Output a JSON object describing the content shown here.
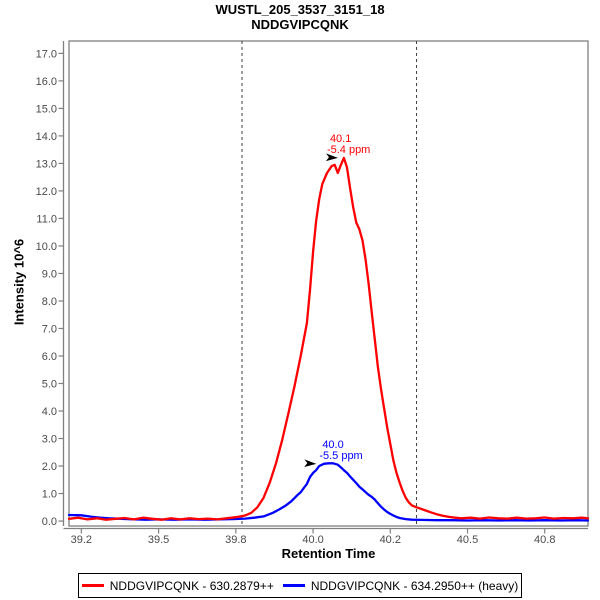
{
  "title": {
    "line1": "WUSTL_205_3537_3151_18",
    "line2": "NDDGVIPCQNK"
  },
  "chart_data": {
    "type": "line",
    "title": "WUSTL_205_3537_3151_18",
    "subtitle": "NDDGVIPCQNK",
    "xlabel": "Retention Time",
    "ylabel": "Intensity 10^6",
    "xlim": [
      39.21,
      40.89
    ],
    "ylim": [
      -0.18,
      17.45
    ],
    "grid": false,
    "legend_position": "bottom",
    "x_ticks": [
      {
        "t": 39.25,
        "label": "39.2"
      },
      {
        "t": 39.5,
        "label": "39.5"
      },
      {
        "t": 39.75,
        "label": "39.8"
      },
      {
        "t": 40.0,
        "label": "40.0"
      },
      {
        "t": 40.25,
        "label": "40.2"
      },
      {
        "t": 40.5,
        "label": "40.5"
      },
      {
        "t": 40.75,
        "label": "40.8"
      }
    ],
    "y_ticks": [
      {
        "v": 0,
        "label": "0.0"
      },
      {
        "v": 1,
        "label": "1.0"
      },
      {
        "v": 2,
        "label": "2.0"
      },
      {
        "v": 3,
        "label": "3.0"
      },
      {
        "v": 4,
        "label": "4.0"
      },
      {
        "v": 5,
        "label": "5.0"
      },
      {
        "v": 6,
        "label": "6.0"
      },
      {
        "v": 7,
        "label": "7.0"
      },
      {
        "v": 8,
        "label": "8.0"
      },
      {
        "v": 9,
        "label": "9.0"
      },
      {
        "v": 10,
        "label": "10.0"
      },
      {
        "v": 11,
        "label": "11.0"
      },
      {
        "v": 12,
        "label": "12.0"
      },
      {
        "v": 13,
        "label": "13.0"
      },
      {
        "v": 14,
        "label": "14.0"
      },
      {
        "v": 15,
        "label": "15.0"
      },
      {
        "v": 16,
        "label": "16.0"
      },
      {
        "v": 17,
        "label": "17.0"
      }
    ],
    "peak_boundaries": {
      "times": [
        39.77,
        40.335
      ],
      "style": "dashed",
      "color": "#3f3f3f"
    },
    "series": [
      {
        "id": "light",
        "name": "NDDGVIPCQNK - 630.2879++",
        "color": "#ff0000",
        "annotation": {
          "rt_label": "40.1",
          "ppm_label": "-5.4 ppm",
          "at": [
            40.1,
            13.2
          ],
          "label_dx": -14,
          "arrow_color": "#000000"
        },
        "points": [
          [
            39.21,
            0.08
          ],
          [
            39.24,
            0.12
          ],
          [
            39.27,
            0.06
          ],
          [
            39.3,
            0.1
          ],
          [
            39.33,
            0.05
          ],
          [
            39.36,
            0.08
          ],
          [
            39.39,
            0.11
          ],
          [
            39.42,
            0.06
          ],
          [
            39.45,
            0.12
          ],
          [
            39.48,
            0.08
          ],
          [
            39.51,
            0.05
          ],
          [
            39.54,
            0.1
          ],
          [
            39.57,
            0.06
          ],
          [
            39.6,
            0.1
          ],
          [
            39.63,
            0.07
          ],
          [
            39.66,
            0.09
          ],
          [
            39.69,
            0.06
          ],
          [
            39.72,
            0.1
          ],
          [
            39.75,
            0.14
          ],
          [
            39.78,
            0.2
          ],
          [
            39.8,
            0.3
          ],
          [
            39.82,
            0.5
          ],
          [
            39.84,
            0.85
          ],
          [
            39.86,
            1.4
          ],
          [
            39.88,
            2.1
          ],
          [
            39.9,
            2.95
          ],
          [
            39.92,
            3.9
          ],
          [
            39.94,
            4.9
          ],
          [
            39.96,
            6.0
          ],
          [
            39.98,
            7.2
          ],
          [
            39.99,
            8.4
          ],
          [
            40.0,
            9.8
          ],
          [
            40.01,
            10.9
          ],
          [
            40.02,
            11.7
          ],
          [
            40.03,
            12.25
          ],
          [
            40.045,
            12.65
          ],
          [
            40.06,
            12.9
          ],
          [
            40.07,
            12.95
          ],
          [
            40.08,
            12.65
          ],
          [
            40.09,
            12.95
          ],
          [
            40.1,
            13.2
          ],
          [
            40.11,
            12.85
          ],
          [
            40.12,
            12.1
          ],
          [
            40.13,
            11.4
          ],
          [
            40.14,
            10.85
          ],
          [
            40.15,
            10.6
          ],
          [
            40.16,
            10.2
          ],
          [
            40.17,
            9.5
          ],
          [
            40.18,
            8.6
          ],
          [
            40.19,
            7.6
          ],
          [
            40.2,
            6.6
          ],
          [
            40.21,
            5.6
          ],
          [
            40.22,
            4.8
          ],
          [
            40.23,
            4.1
          ],
          [
            40.24,
            3.4
          ],
          [
            40.25,
            2.8
          ],
          [
            40.26,
            2.2
          ],
          [
            40.27,
            1.75
          ],
          [
            40.28,
            1.4
          ],
          [
            40.29,
            1.1
          ],
          [
            40.3,
            0.85
          ],
          [
            40.31,
            0.68
          ],
          [
            40.32,
            0.57
          ],
          [
            40.335,
            0.5
          ],
          [
            40.36,
            0.4
          ],
          [
            40.38,
            0.32
          ],
          [
            40.4,
            0.25
          ],
          [
            40.42,
            0.19
          ],
          [
            40.44,
            0.15
          ],
          [
            40.46,
            0.12
          ],
          [
            40.48,
            0.1
          ],
          [
            40.51,
            0.12
          ],
          [
            40.54,
            0.09
          ],
          [
            40.57,
            0.13
          ],
          [
            40.6,
            0.1
          ],
          [
            40.63,
            0.09
          ],
          [
            40.66,
            0.12
          ],
          [
            40.69,
            0.09
          ],
          [
            40.72,
            0.1
          ],
          [
            40.75,
            0.13
          ],
          [
            40.78,
            0.09
          ],
          [
            40.81,
            0.11
          ],
          [
            40.84,
            0.1
          ],
          [
            40.87,
            0.12
          ],
          [
            40.89,
            0.1
          ]
        ]
      },
      {
        "id": "heavy",
        "name": "NDDGVIPCQNK - 634.2950++ (heavy)",
        "color": "#0000ff",
        "annotation": {
          "rt_label": "40.0",
          "ppm_label": "-5.5 ppm",
          "at": [
            40.03,
            2.08
          ],
          "label_dx": 0,
          "arrow_color": "#000000"
        },
        "points": [
          [
            39.21,
            0.22
          ],
          [
            39.25,
            0.21
          ],
          [
            39.28,
            0.16
          ],
          [
            39.31,
            0.12
          ],
          [
            39.34,
            0.1
          ],
          [
            39.38,
            0.08
          ],
          [
            39.42,
            0.06
          ],
          [
            39.46,
            0.05
          ],
          [
            39.5,
            0.06
          ],
          [
            39.55,
            0.05
          ],
          [
            39.6,
            0.06
          ],
          [
            39.65,
            0.05
          ],
          [
            39.7,
            0.06
          ],
          [
            39.74,
            0.07
          ],
          [
            39.78,
            0.09
          ],
          [
            39.81,
            0.12
          ],
          [
            39.84,
            0.17
          ],
          [
            39.87,
            0.3
          ],
          [
            39.89,
            0.42
          ],
          [
            39.91,
            0.55
          ],
          [
            39.93,
            0.72
          ],
          [
            39.95,
            0.95
          ],
          [
            39.96,
            1.05
          ],
          [
            39.97,
            1.2
          ],
          [
            39.98,
            1.35
          ],
          [
            39.99,
            1.6
          ],
          [
            40.0,
            1.75
          ],
          [
            40.01,
            1.85
          ],
          [
            40.02,
            2.0
          ],
          [
            40.035,
            2.08
          ],
          [
            40.05,
            2.1
          ],
          [
            40.065,
            2.1
          ],
          [
            40.08,
            2.05
          ],
          [
            40.09,
            1.95
          ],
          [
            40.1,
            1.85
          ],
          [
            40.11,
            1.75
          ],
          [
            40.12,
            1.62
          ],
          [
            40.13,
            1.5
          ],
          [
            40.14,
            1.38
          ],
          [
            40.15,
            1.25
          ],
          [
            40.16,
            1.15
          ],
          [
            40.17,
            1.05
          ],
          [
            40.18,
            0.95
          ],
          [
            40.19,
            0.88
          ],
          [
            40.2,
            0.78
          ],
          [
            40.21,
            0.65
          ],
          [
            40.22,
            0.52
          ],
          [
            40.23,
            0.42
          ],
          [
            40.24,
            0.33
          ],
          [
            40.25,
            0.26
          ],
          [
            40.26,
            0.2
          ],
          [
            40.27,
            0.15
          ],
          [
            40.28,
            0.11
          ],
          [
            40.3,
            0.07
          ],
          [
            40.32,
            0.05
          ],
          [
            40.35,
            0.04
          ],
          [
            40.4,
            0.03
          ],
          [
            40.45,
            0.03
          ],
          [
            40.5,
            0.02
          ],
          [
            40.55,
            0.03
          ],
          [
            40.6,
            0.02
          ],
          [
            40.65,
            0.03
          ],
          [
            40.7,
            0.02
          ],
          [
            40.75,
            0.03
          ],
          [
            40.8,
            0.02
          ],
          [
            40.85,
            0.03
          ],
          [
            40.89,
            0.02
          ]
        ]
      }
    ]
  },
  "legend": {
    "items": [
      {
        "label": "NDDGVIPCQNK - 630.2879++",
        "color": "#ff0000"
      },
      {
        "label": "NDDGVIPCQNK - 634.2950++ (heavy)",
        "color": "#0000ff"
      }
    ]
  },
  "colors": {
    "background": "#ffffff",
    "plot_border": "#808080",
    "tick_label": "#4a4a4a",
    "boundary_line": "#3f3f3f",
    "light_series": "#ff0000",
    "heavy_series": "#0000ff"
  }
}
